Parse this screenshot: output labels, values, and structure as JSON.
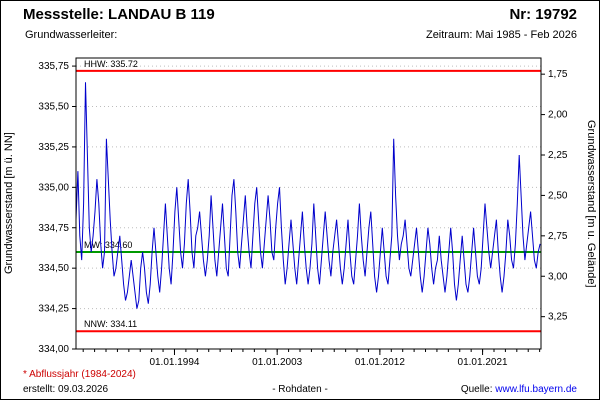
{
  "header": {
    "station": "Messstelle: LANDAU B 119",
    "number": "Nr: 19792",
    "aquifer_label": "Grundwasserleiter:",
    "period": "Zeitraum: Mai 1985 - Feb 2026"
  },
  "footer": {
    "note": "* Abflussjahr (1984-2024)",
    "created": "erstellt: 09.03.2026",
    "center": "- Rohdaten -",
    "source_label": "Quelle:",
    "source_link": "www.lfu.bayern.de"
  },
  "colors": {
    "series": "#0000cc",
    "reference_high_low": "#ff0000",
    "reference_mean": "#009900",
    "note_red": "#cc0000",
    "link_blue": "#0000ee"
  },
  "chart_data": {
    "type": "line",
    "title": "",
    "ylabel_left": "Grundwasserstand [m ü. NN]",
    "ylabel_right": "Grundwasserstand [m u. Gelände]",
    "ylim": [
      334.0,
      335.8
    ],
    "xlim": [
      1985.37,
      2026.12
    ],
    "grid": "horizontal-dotted",
    "legend_position": "none",
    "y_ticks_left": [
      {
        "value": 334.0,
        "label": "334,00"
      },
      {
        "value": 334.25,
        "label": "334,25"
      },
      {
        "value": 334.5,
        "label": "334,50"
      },
      {
        "value": 334.75,
        "label": "334,75"
      },
      {
        "value": 335.0,
        "label": "335,00"
      },
      {
        "value": 335.25,
        "label": "335,25"
      },
      {
        "value": 335.5,
        "label": "335,50"
      },
      {
        "value": 335.75,
        "label": "335,75"
      }
    ],
    "right_axis": {
      "top_value": 1.65,
      "bottom_value": 3.45,
      "ticks": [
        {
          "value": 1.75,
          "label": "1,75"
        },
        {
          "value": 2.0,
          "label": "2,00"
        },
        {
          "value": 2.25,
          "label": "2,25"
        },
        {
          "value": 2.5,
          "label": "2,50"
        },
        {
          "value": 2.75,
          "label": "2,75"
        },
        {
          "value": 3.0,
          "label": "3,00"
        },
        {
          "value": 3.25,
          "label": "3,25"
        }
      ]
    },
    "x_ticks": [
      {
        "value": 1994.0,
        "label": "01.01.1994"
      },
      {
        "value": 2003.0,
        "label": "01.01.2003"
      },
      {
        "value": 2012.0,
        "label": "01.01.2012"
      },
      {
        "value": 2021.0,
        "label": "01.01.2021"
      }
    ],
    "reference_lines": [
      {
        "name": "HHW",
        "value": 335.72,
        "label": "HHW: 335.72",
        "color": "#ff0000",
        "width": 2
      },
      {
        "name": "MW",
        "value": 334.6,
        "label": "MW: 334.60",
        "color": "#009900",
        "width": 2
      },
      {
        "name": "NNW",
        "value": 334.11,
        "label": "NNW: 334.11",
        "color": "#ff0000",
        "width": 2
      }
    ],
    "series": [
      {
        "name": "Grundwasserstand Rohdaten",
        "color": "#0000cc",
        "x_start": 1985.37,
        "x_step": 0.1667,
        "values": [
          334.8,
          335.1,
          334.7,
          334.55,
          334.9,
          335.65,
          335.2,
          334.75,
          334.6,
          334.7,
          334.85,
          335.05,
          334.9,
          334.65,
          334.5,
          334.6,
          335.3,
          335.05,
          334.8,
          334.6,
          334.45,
          334.5,
          334.6,
          334.7,
          334.55,
          334.4,
          334.3,
          334.35,
          334.45,
          334.55,
          334.45,
          334.35,
          334.25,
          334.3,
          334.5,
          334.6,
          334.5,
          334.35,
          334.28,
          334.4,
          334.6,
          334.75,
          334.6,
          334.45,
          334.35,
          334.5,
          334.7,
          334.9,
          334.7,
          334.5,
          334.4,
          334.6,
          334.85,
          335.0,
          334.8,
          334.6,
          334.5,
          334.65,
          334.9,
          335.05,
          334.85,
          334.6,
          334.5,
          334.7,
          334.75,
          334.85,
          334.7,
          334.55,
          334.45,
          334.55,
          334.7,
          334.95,
          334.75,
          334.55,
          334.45,
          334.6,
          334.75,
          334.9,
          334.7,
          334.5,
          334.45,
          334.7,
          334.95,
          335.05,
          334.85,
          334.6,
          334.5,
          334.65,
          334.8,
          334.95,
          334.75,
          334.6,
          334.5,
          334.7,
          334.9,
          335.0,
          334.8,
          334.6,
          334.5,
          334.65,
          334.8,
          334.95,
          334.8,
          334.6,
          334.55,
          334.75,
          334.9,
          335.0,
          334.75,
          334.55,
          334.4,
          334.5,
          334.65,
          334.8,
          334.65,
          334.5,
          334.4,
          334.55,
          334.7,
          334.85,
          334.65,
          334.5,
          334.4,
          334.5,
          334.65,
          334.9,
          334.7,
          334.5,
          334.4,
          334.55,
          334.7,
          334.85,
          334.7,
          334.55,
          334.45,
          334.6,
          334.7,
          334.8,
          334.65,
          334.5,
          334.4,
          334.5,
          334.65,
          334.8,
          334.6,
          334.45,
          334.4,
          334.55,
          334.7,
          334.9,
          334.7,
          334.55,
          334.45,
          334.6,
          334.75,
          334.85,
          334.65,
          334.45,
          334.35,
          334.45,
          334.6,
          334.75,
          334.6,
          334.45,
          334.4,
          334.55,
          334.7,
          335.3,
          334.95,
          334.7,
          334.55,
          334.65,
          334.7,
          334.8,
          334.65,
          334.5,
          334.45,
          334.55,
          334.65,
          334.75,
          334.6,
          334.45,
          334.35,
          334.45,
          334.6,
          334.75,
          334.65,
          334.5,
          334.4,
          334.5,
          334.55,
          334.7,
          334.55,
          334.45,
          334.35,
          334.45,
          334.6,
          334.75,
          334.6,
          334.4,
          334.3,
          334.4,
          334.55,
          334.7,
          334.55,
          334.4,
          334.35,
          334.45,
          334.6,
          334.75,
          334.6,
          334.45,
          334.4,
          334.5,
          334.7,
          334.9,
          334.75,
          334.6,
          334.5,
          334.6,
          334.7,
          334.8,
          334.6,
          334.45,
          334.35,
          334.45,
          334.6,
          334.8,
          334.7,
          334.55,
          334.5,
          334.65,
          334.9,
          335.2,
          334.95,
          334.7,
          334.55,
          334.65,
          334.75,
          334.85,
          334.7,
          334.55,
          334.5,
          334.6,
          334.65
        ]
      }
    ]
  }
}
